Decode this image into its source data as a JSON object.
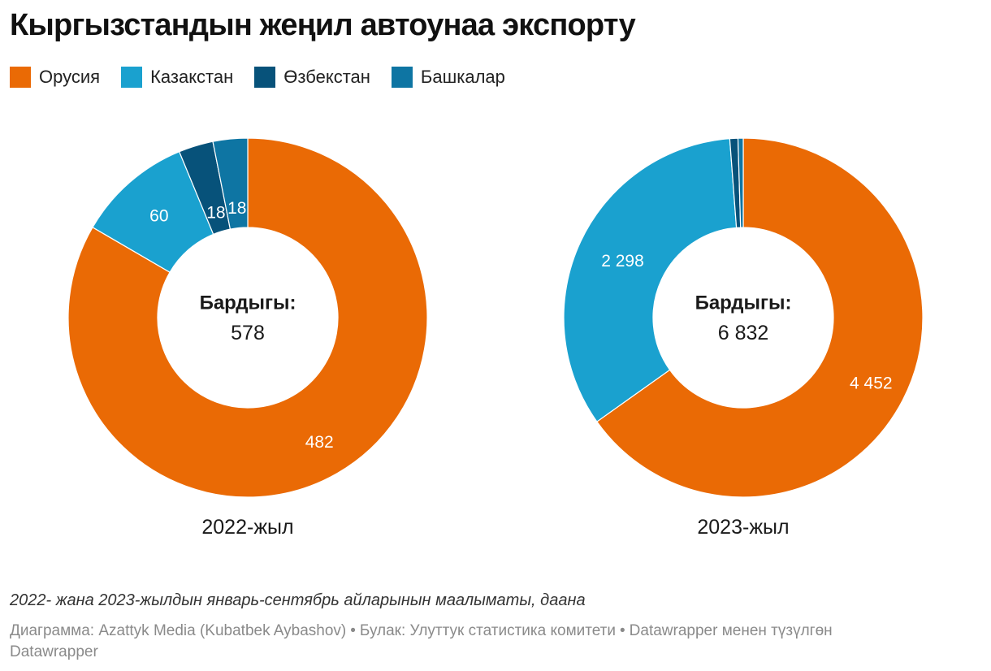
{
  "title": "Кыргызстандын жеңил автоунаа экспорту",
  "legend": [
    {
      "label": "Орусия",
      "color": "#ea6a05"
    },
    {
      "label": "Казакстан",
      "color": "#1aa1cf"
    },
    {
      "label": "Өзбекстан",
      "color": "#07527a"
    },
    {
      "label": "Башкалар",
      "color": "#0e75a3"
    }
  ],
  "chart_data": [
    {
      "type": "pie",
      "subtitle": "2022-жыл",
      "total_label": "Бардыгы:",
      "total_value": "578",
      "categories": [
        "Орусия",
        "Казакстан",
        "Өзбекстан",
        "Башкалар"
      ],
      "values": [
        482,
        60,
        18,
        18
      ],
      "labels": [
        "482",
        "60",
        "18",
        "18"
      ],
      "donut": true
    },
    {
      "type": "pie",
      "subtitle": "2023-жыл",
      "total_label": "Бардыгы:",
      "total_value": "6 832",
      "categories": [
        "Орусия",
        "Казакстан",
        "Өзбекстан",
        "Башкалар"
      ],
      "values": [
        4452,
        2298,
        50,
        32
      ],
      "labels": [
        "4 452",
        "2 298",
        "",
        ""
      ],
      "donut": true
    }
  ],
  "description": "2022- жана 2023-жылдын январь-сентябрь айларынын маалыматы, даана",
  "footer": {
    "credit": "Диаграмма: Azattyk Media (Kubatbek Aybashov)",
    "source": "Булак: Улуттук статистика комитети",
    "made_with": "Datawrapper менен түзүлгөн"
  }
}
